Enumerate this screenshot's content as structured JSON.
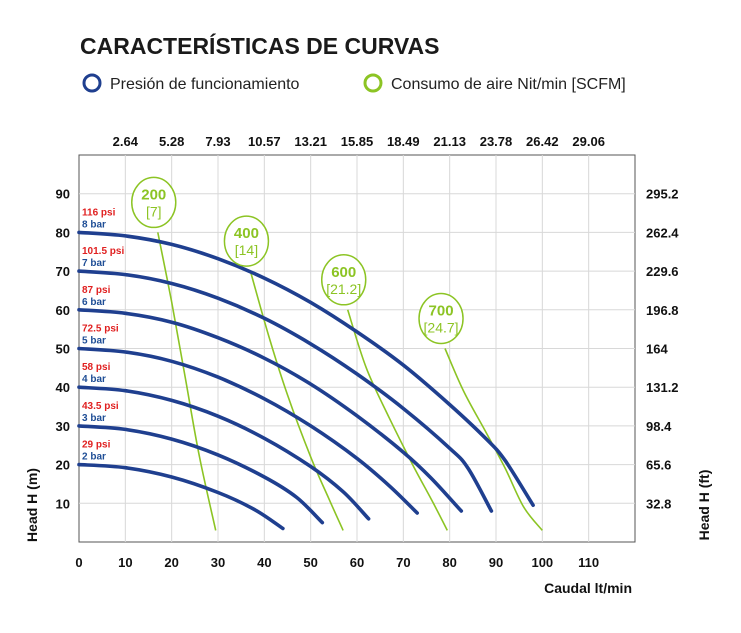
{
  "chart_data": {
    "type": "line",
    "title": "CARACTERÍSTICAS DE CURVAS",
    "legend": [
      {
        "label": "Presión de funcionamiento",
        "color": "#1f3f8f"
      },
      {
        "label": "Consumo de aire Nit/min [SCFM]",
        "color": "#8cc424"
      }
    ],
    "xlabel": "Caudal lt/min",
    "ylabel": "Head H (m)",
    "y2label": "Head H (ft)",
    "xlim": [
      0,
      120
    ],
    "ylim": [
      0,
      100
    ],
    "x_ticks": [
      "0",
      "10",
      "20",
      "30",
      "40",
      "50",
      "60",
      "70",
      "80",
      "90",
      "100",
      "110"
    ],
    "y_ticks": [
      "10",
      "20",
      "30",
      "40",
      "50",
      "60",
      "70",
      "80",
      "90"
    ],
    "top_ticks": [
      "2.64",
      "5.28",
      "7.93",
      "10.57",
      "13.21",
      "15.85",
      "18.49",
      "21.13",
      "23.78",
      "26.42",
      "29.06"
    ],
    "right_ticks": [
      "32.8",
      "65.6",
      "98.4",
      "131.2",
      "164",
      "196.8",
      "229.6",
      "262.4",
      "295.2"
    ],
    "pressure_series": [
      {
        "psi": "29 psi",
        "bar": "2 bar",
        "x": [
          0,
          10,
          20,
          30,
          38,
          44
        ],
        "y": [
          20,
          19.2,
          16.8,
          12.8,
          8.3,
          3.5
        ]
      },
      {
        "psi": "43.5 psi",
        "bar": "3 bar",
        "x": [
          0,
          10,
          20,
          30,
          40,
          47,
          52.5
        ],
        "y": [
          30,
          29.1,
          26.6,
          22.5,
          16.8,
          11.5,
          5
        ]
      },
      {
        "psi": "58 psi",
        "bar": "4 bar",
        "x": [
          0,
          10,
          20,
          30,
          40,
          50,
          57,
          62.5
        ],
        "y": [
          40,
          39.1,
          36.6,
          32.5,
          26.8,
          19.5,
          13,
          6
        ]
      },
      {
        "psi": "72.5 psi",
        "bar": "5 bar",
        "x": [
          0,
          10,
          20,
          30,
          40,
          50,
          60,
          67,
          73
        ],
        "y": [
          50,
          49.1,
          46.7,
          42.6,
          37,
          30,
          21.6,
          14.5,
          7.5
        ]
      },
      {
        "psi": "87 psi",
        "bar": "6 bar",
        "x": [
          0,
          10,
          20,
          30,
          40,
          50,
          60,
          70,
          76,
          82.5
        ],
        "y": [
          60,
          59.1,
          56.8,
          52.8,
          47.5,
          40.8,
          32.6,
          23.2,
          16.5,
          8
        ]
      },
      {
        "psi": "101.5 psi",
        "bar": "7 bar",
        "x": [
          0,
          10,
          20,
          30,
          40,
          50,
          60,
          70,
          80,
          84,
          89
        ],
        "y": [
          70,
          69.1,
          66.8,
          63,
          57.8,
          51.2,
          43.4,
          34.5,
          24.2,
          19,
          8
        ]
      },
      {
        "psi": "116 psi",
        "bar": "8 bar",
        "x": [
          0,
          10,
          20,
          30,
          40,
          50,
          60,
          70,
          80,
          88,
          92,
          98
        ],
        "y": [
          80,
          79.1,
          76.9,
          73.2,
          68.2,
          61.9,
          54.3,
          45.7,
          35.5,
          26.5,
          21,
          9.5
        ]
      }
    ],
    "air_series": [
      {
        "label_top": "200",
        "label_bottom": "[7]",
        "x": [
          17,
          20,
          23,
          26,
          29.5
        ],
        "y": [
          80,
          62,
          42,
          22,
          3
        ]
      },
      {
        "label_top": "400",
        "label_bottom": "[14]",
        "x": [
          37,
          41,
          45,
          50,
          54,
          57
        ],
        "y": [
          70,
          53,
          38,
          22,
          11,
          3
        ]
      },
      {
        "label_top": "600",
        "label_bottom": "[21.2]",
        "x": [
          58,
          62,
          67,
          72,
          76.5,
          79.5
        ],
        "y": [
          60,
          45,
          32,
          20,
          10,
          3
        ]
      },
      {
        "label_top": "700",
        "label_bottom": "[24.7]",
        "x": [
          79,
          83,
          88,
          92,
          96,
          100
        ],
        "y": [
          50,
          39,
          28,
          19,
          9,
          3
        ]
      }
    ]
  }
}
